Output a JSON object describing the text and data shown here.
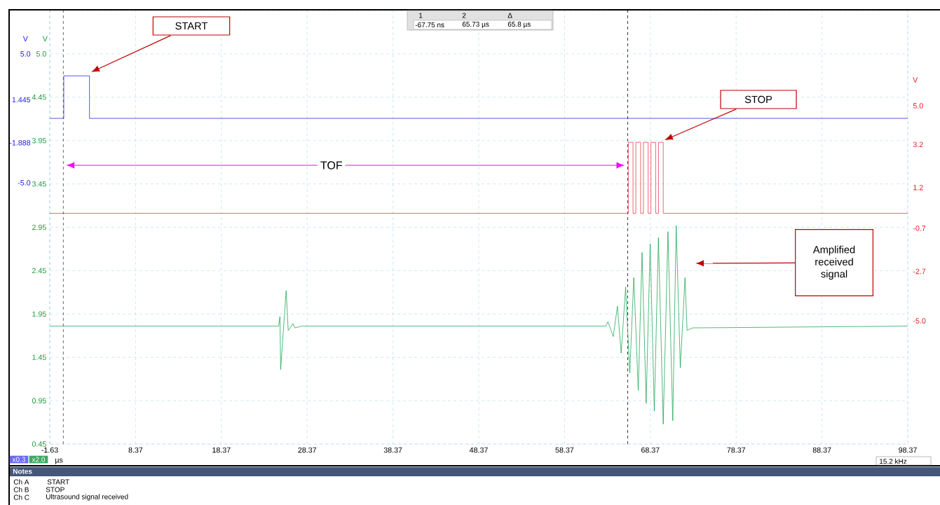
{
  "chart_data": {
    "type": "line",
    "xlabel": "µs",
    "ylabel": "V",
    "y2label": "V",
    "y3label": "V",
    "xlim": [
      -1.63,
      98.37
    ],
    "xticks": [
      -1.63,
      8.37,
      18.37,
      28.37,
      38.37,
      48.37,
      58.37,
      68.37,
      78.37,
      88.37,
      98.37
    ],
    "ylim": [
      0.45,
      5.45
    ],
    "yticks": [
      0.45,
      0.95,
      1.45,
      1.95,
      2.45,
      2.95,
      3.45,
      3.95,
      4.45,
      {
        "value": 4.95,
        "label": "5.0"
      }
    ],
    "y2lim": [
      -25.27,
      8.37
    ],
    "y2ticks": [
      {
        "value": 5,
        "label": "5.0"
      },
      1.445,
      -1.888,
      {
        "value": -5,
        "label": "-5.0"
      }
    ],
    "y3lim": [
      -10.73,
      9.43
    ],
    "y3ticks": [
      {
        "value": 5,
        "label": "5.0"
      },
      3.2,
      1.2,
      -0.7,
      -2.7,
      {
        "value": -5,
        "label": "-5.0"
      }
    ],
    "grid": true,
    "series": [
      {
        "axis": "y2",
        "color": "#1a1ae6",
        "x": [
          -1.63,
          0,
          0,
          3.0,
          3.0,
          98.37
        ],
        "values": [
          0,
          0,
          3.3,
          3.3,
          0,
          0
        ]
      },
      {
        "axis": "y3",
        "color": "#e8303a",
        "x": [
          -1.63,
          65.8,
          65.8,
          66.35,
          66.35,
          66.68,
          66.68,
          67.23,
          67.23,
          67.56,
          67.56,
          68.11,
          68.11,
          68.44,
          68.44,
          68.99,
          68.99,
          69.32,
          69.32,
          69.87,
          69.87,
          98.37
        ],
        "values": [
          0,
          0,
          3.3,
          3.3,
          0,
          0,
          3.3,
          3.3,
          0,
          0,
          3.3,
          3.3,
          0,
          0,
          3.3,
          3.3,
          0,
          0,
          3.3,
          3.3,
          0,
          0
        ]
      },
      {
        "color": "#12a04c",
        "x": [
          -1.63,
          25.04,
          25.2,
          25.28,
          25.92,
          26.16,
          26.47,
          26.71,
          26.95,
          27.75,
          63.18,
          63.42,
          64.05,
          64.53,
          64.97,
          65.49,
          65.97,
          66.44,
          66.96,
          67.4,
          67.88,
          68.35,
          68.83,
          69.31,
          69.87,
          70.42,
          70.98,
          71.38,
          71.86,
          72.41,
          72.65,
          73.29,
          98.37
        ],
        "values": [
          1.81,
          1.81,
          1.92,
          1.31,
          2.22,
          1.76,
          1.8,
          1.84,
          1.79,
          1.81,
          1.81,
          1.86,
          1.69,
          2.04,
          1.5,
          2.26,
          1.27,
          2.37,
          1.07,
          2.66,
          0.92,
          2.76,
          0.83,
          2.83,
          0.68,
          2.9,
          0.72,
          2.97,
          1.33,
          2.37,
          1.76,
          1.79,
          1.81
        ]
      }
    ],
    "ref_lines": [
      {
        "axis": "x",
        "value": -0.06775,
        "color": "#000000",
        "line_style": "dashed"
      },
      {
        "axis": "x",
        "value": 65.73,
        "color": "#000000",
        "line_style": "dashed"
      }
    ],
    "annotations": [
      "START",
      "STOP",
      "Amplified received signal",
      "TOF",
      "1",
      "2",
      "Δ",
      "-67.75 ns",
      "65.73 µs",
      "65.8 µs",
      "x0.3",
      "x2.0",
      "15.2 kHz",
      "Notes",
      "Ch  A",
      "START",
      "Ch  B",
      "STOP",
      "Ch  C",
      "Ultrasound signal received"
    ]
  }
}
